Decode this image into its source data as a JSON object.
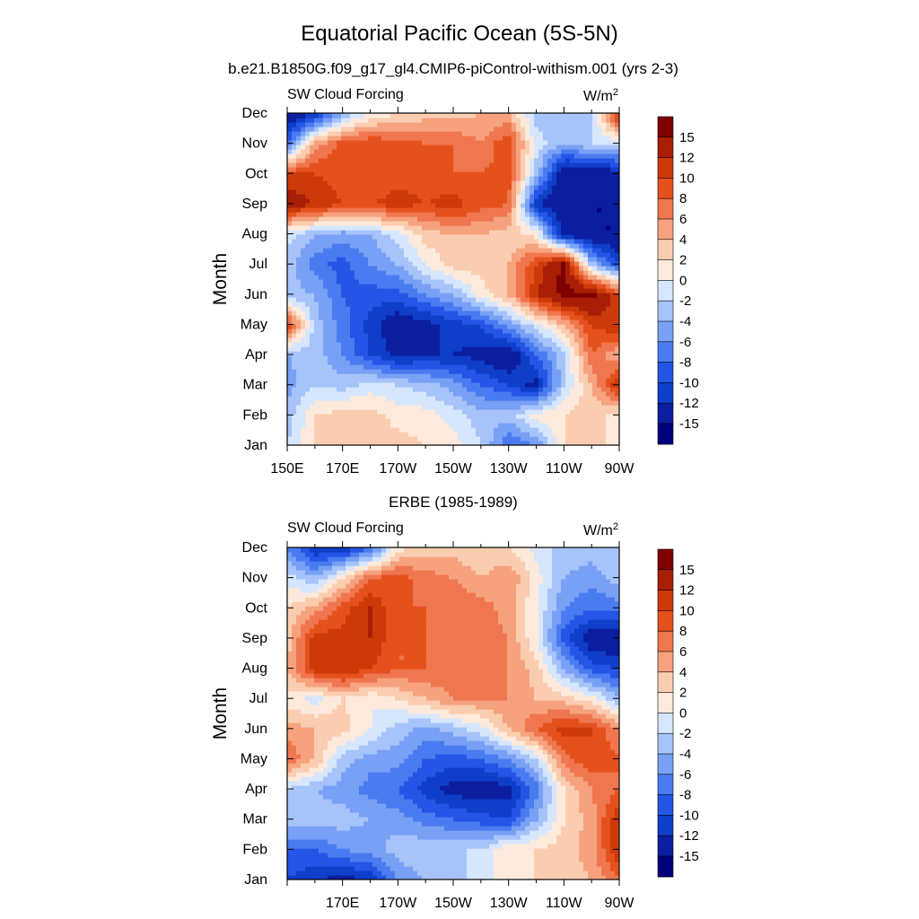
{
  "figure": {
    "title": "Equatorial Pacific Ocean (5S-5N)",
    "units": "W/m",
    "units_sup": "2"
  },
  "colorbar": {
    "labels": [
      "15",
      "12",
      "10",
      "8",
      "6",
      "4",
      "2",
      "0",
      "-2",
      "-4",
      "-6",
      "-8",
      "-10",
      "-12",
      "-15"
    ],
    "levels": [
      -15,
      -12,
      -10,
      -8,
      -6,
      -4,
      -2,
      0,
      2,
      4,
      6,
      8,
      10,
      12,
      15
    ],
    "colors": [
      "#00007f",
      "#0a1e9f",
      "#0f3ec8",
      "#2455e6",
      "#4a7bf0",
      "#78a0f5",
      "#a6c3fa",
      "#d6e6fc",
      "#fdeadc",
      "#fbcdb0",
      "#f6a27e",
      "#ef764f",
      "#e5511d",
      "#cc3a0a",
      "#a81e06",
      "#7e0000"
    ]
  },
  "chart_data": [
    {
      "type": "heatmap",
      "title": "b.e21.B1850G.f09_g17_gl4.CMIP6-piControl-withism.001 (yrs 2-3)",
      "panel_label": "SW Cloud Forcing",
      "units": "W/m2",
      "xlabel": "",
      "ylabel": "Month",
      "xlim": [
        150,
        270
      ],
      "x_tick_labels": [
        "150E",
        "170E",
        "170W",
        "150W",
        "130W",
        "110W",
        "90W"
      ],
      "y_tick_labels": [
        "Jan",
        "Feb",
        "Mar",
        "Apr",
        "May",
        "Jun",
        "Jul",
        "Aug",
        "Sep",
        "Oct",
        "Nov",
        "Dec"
      ],
      "x": [
        150,
        160,
        170,
        180,
        190,
        200,
        210,
        220,
        230,
        240,
        250,
        260,
        270
      ],
      "y": [
        "Jan",
        "Feb",
        "Mar",
        "Apr",
        "May",
        "Jun",
        "Jul",
        "Aug",
        "Sep",
        "Oct",
        "Nov",
        "Dec"
      ],
      "z": [
        [
          -2,
          2,
          4,
          4,
          3,
          2,
          1,
          -2,
          -8,
          -6,
          2,
          3,
          1
        ],
        [
          -3,
          2,
          3,
          3,
          1,
          1,
          -1,
          -3,
          -3,
          1,
          2,
          3,
          1
        ],
        [
          -5,
          -2,
          -3,
          -1,
          -2,
          -3,
          -5,
          -8,
          -10,
          -13,
          -2,
          4,
          12
        ],
        [
          -4,
          -3,
          -6,
          -10,
          -13,
          -12,
          -12,
          -13,
          -15,
          -8,
          -3,
          8,
          4
        ],
        [
          10,
          -3,
          -7,
          -11,
          -14,
          -13,
          -11,
          -10,
          -5,
          -1,
          4,
          10,
          12
        ],
        [
          -3,
          -4,
          -8,
          -9,
          -9,
          -6,
          -4,
          1,
          4,
          12,
          16,
          16,
          10
        ],
        [
          -3,
          -7,
          -9,
          -6,
          -4,
          0,
          3,
          3,
          4,
          10,
          16,
          -3,
          -10
        ],
        [
          -1,
          -4,
          -5,
          -4,
          -1,
          3,
          4,
          4,
          3,
          1,
          -13,
          -15,
          -15
        ],
        [
          14,
          12,
          10,
          10,
          11,
          10,
          11,
          9,
          8,
          -12,
          -15,
          -15,
          -15
        ],
        [
          10,
          10,
          9,
          8,
          9,
          9,
          8,
          8,
          9,
          -3,
          -15,
          -15,
          -13
        ],
        [
          -8,
          5,
          9,
          10,
          9,
          8,
          8,
          6,
          10,
          -1,
          -4,
          -2,
          -1
        ],
        [
          -15,
          -12,
          -4,
          0,
          2,
          3,
          3,
          4,
          4,
          -3,
          -2,
          -3,
          12
        ]
      ]
    },
    {
      "type": "heatmap",
      "title": "ERBE (1985-1989)",
      "panel_label": "SW Cloud Forcing",
      "units": "W/m2",
      "xlabel": "",
      "ylabel": "Month",
      "xlim": [
        150,
        270
      ],
      "x_tick_labels": [
        "",
        "170E",
        "170W",
        "150W",
        "130W",
        "110W",
        "90W"
      ],
      "y_tick_labels": [
        "Jan",
        "Feb",
        "Mar",
        "Apr",
        "May",
        "Jun",
        "Jul",
        "Aug",
        "Sep",
        "Oct",
        "Nov",
        "Dec"
      ],
      "x": [
        150,
        160,
        170,
        180,
        190,
        200,
        210,
        220,
        230,
        240,
        250,
        260,
        270
      ],
      "y": [
        "Jan",
        "Feb",
        "Mar",
        "Apr",
        "May",
        "Jun",
        "Jul",
        "Aug",
        "Sep",
        "Oct",
        "Nov",
        "Dec"
      ],
      "z": [
        [
          -10,
          -12,
          -13,
          -12,
          -6,
          -4,
          -3,
          -1,
          1,
          2,
          3,
          4,
          8
        ],
        [
          -8,
          -8,
          -6,
          -5,
          -3,
          -2,
          -2,
          -2,
          2,
          2,
          3,
          5,
          12
        ],
        [
          -3,
          -3,
          -3,
          -4,
          -5,
          -7,
          -8,
          -9,
          -10,
          -4,
          2,
          5,
          12
        ],
        [
          -2,
          -4,
          -5,
          -7,
          -8,
          -11,
          -13,
          -14,
          -13,
          -7,
          2,
          6,
          8
        ],
        [
          8,
          4,
          -3,
          -5,
          -5,
          -8,
          -9,
          -8,
          -6,
          -2,
          7,
          10,
          8
        ],
        [
          5,
          4,
          3,
          0,
          -3,
          -5,
          -3,
          -1,
          4,
          8,
          11,
          10,
          6
        ],
        [
          1,
          -1,
          2,
          0,
          2,
          4,
          6,
          6,
          6,
          4,
          3,
          1,
          -4
        ],
        [
          4,
          11,
          12,
          10,
          8,
          8,
          7,
          7,
          6,
          3,
          -4,
          -9,
          -10
        ],
        [
          3,
          11,
          11,
          12,
          8,
          8,
          7,
          7,
          6,
          0,
          -9,
          -14,
          -15
        ],
        [
          2,
          5,
          9,
          12,
          8,
          8,
          8,
          7,
          5,
          0,
          -6,
          -8,
          -7
        ],
        [
          -1,
          -4,
          2,
          8,
          9,
          7,
          6,
          4,
          6,
          1,
          -4,
          -5,
          -3
        ],
        [
          -6,
          -12,
          -12,
          -8,
          1,
          3,
          3,
          2,
          2,
          -1,
          -3,
          -3,
          -2
        ]
      ]
    }
  ]
}
